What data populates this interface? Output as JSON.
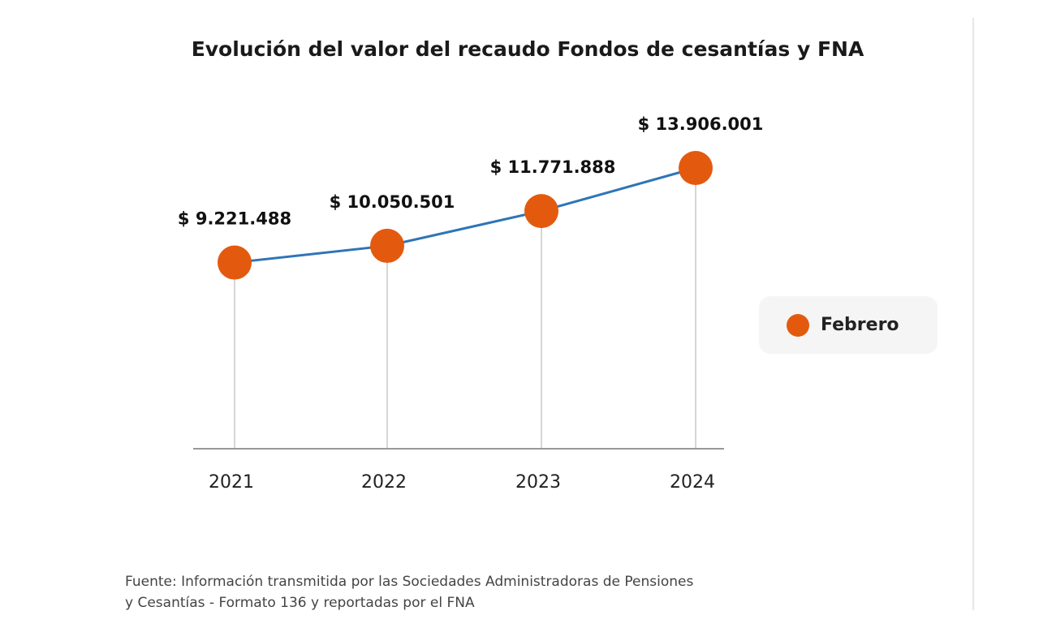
{
  "chart_data": {
    "type": "line",
    "title": "Evolución del valor del recaudo Fondos de cesantías y FNA",
    "categories": [
      "2021",
      "2022",
      "2023",
      "2024"
    ],
    "series": [
      {
        "name": "Febrero",
        "values": [
          9221488,
          10050501,
          11771888,
          13906001
        ],
        "labels": [
          "$ 9.221.488",
          "$ 10.050.501",
          "$ 11.771.888",
          "$ 13.906.001"
        ]
      }
    ],
    "ylim": [
      0,
      14000000
    ],
    "grid": false,
    "legend": "right",
    "colors": {
      "line": "#2E75B6",
      "marker": "#E35A0F",
      "drop_lines": "#C8C8C8",
      "axis": "#999999"
    }
  },
  "source": {
    "line1": "Fuente: Información transmitida por las Sociedades Administradoras de Pensiones",
    "line2": "y Cesantías - Formato 136 y reportadas por el FNA"
  }
}
